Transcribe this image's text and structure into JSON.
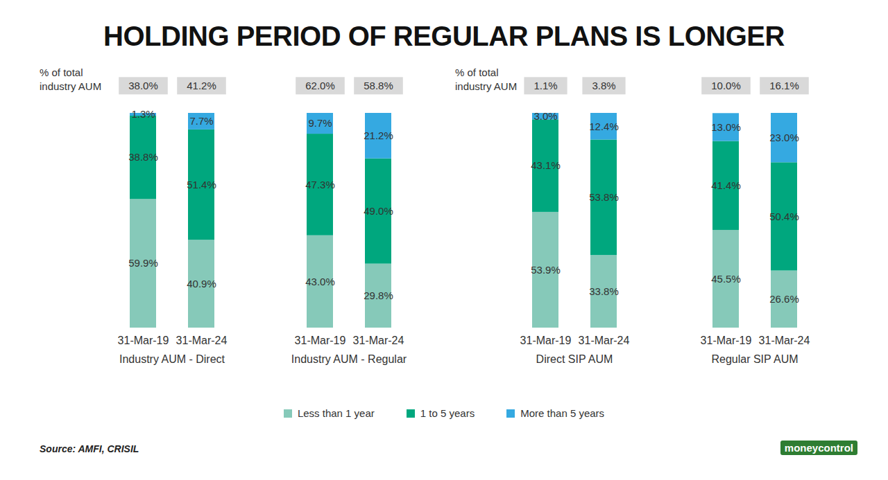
{
  "title": "HOLDING PERIOD OF REGULAR PLANS IS LONGER",
  "source": "Source: AMFI, CRISIL",
  "brand": "moneycontrol",
  "chart_data": [
    {
      "type": "bar",
      "stacked": true,
      "data_labels": true,
      "tick_labels": "x",
      "legend": "bottom",
      "ylim": [
        0,
        100
      ],
      "categories": [
        "31-Mar-19",
        "31-Mar-24",
        "31-Mar-19",
        "31-Mar-24"
      ],
      "category_groups": [
        "Industry AUM - Direct",
        "Industry AUM - Direct",
        "Industry AUM - Regular",
        "Industry AUM - Regular"
      ],
      "totals_label": "% of total industry AUM",
      "totals": [
        38.0,
        41.2,
        62.0,
        58.8
      ],
      "total_labels": [
        "38.0%",
        "41.2%",
        "62.0%",
        "58.8%"
      ],
      "series": [
        {
          "name": "Less than 1 year",
          "color": "#86c9b9",
          "values": [
            59.9,
            40.9,
            43.0,
            29.8
          ],
          "value_labels": [
            "59.9%",
            "40.9%",
            "43.0%",
            "29.8%"
          ]
        },
        {
          "name": "1 to 5 years",
          "color": "#00a77e",
          "values": [
            38.8,
            51.4,
            47.3,
            49.0
          ],
          "value_labels": [
            "38.8%",
            "51.4%",
            "47.3%",
            "49.0%"
          ]
        },
        {
          "name": "More than 5 years",
          "color": "#35a9e1",
          "values": [
            1.3,
            7.7,
            9.7,
            21.2
          ],
          "value_labels": [
            "1.3%",
            "7.7%",
            "9.7%",
            "21.2%"
          ]
        }
      ]
    },
    {
      "type": "bar",
      "stacked": true,
      "data_labels": true,
      "tick_labels": "x",
      "legend": "bottom",
      "ylim": [
        0,
        100
      ],
      "categories": [
        "31-Mar-19",
        "31-Mar-24",
        "31-Mar-19",
        "31-Mar-24"
      ],
      "category_groups": [
        "Direct SIP AUM",
        "Direct SIP AUM",
        "Regular SIP AUM",
        "Regular SIP AUM"
      ],
      "totals_label": "% of total industry AUM",
      "totals": [
        1.1,
        3.8,
        10.0,
        16.1
      ],
      "total_labels": [
        "1.1%",
        "3.8%",
        "10.0%",
        "16.1%"
      ],
      "series": [
        {
          "name": "Less than 1 year",
          "color": "#86c9b9",
          "values": [
            53.9,
            33.8,
            45.5,
            26.6
          ],
          "value_labels": [
            "53.9%",
            "33.8%",
            "45.5%",
            "26.6%"
          ]
        },
        {
          "name": "1 to 5 years",
          "color": "#00a77e",
          "values": [
            43.1,
            53.8,
            41.4,
            50.4
          ],
          "value_labels": [
            "43.1%",
            "53.8%",
            "41.4%",
            "50.4%"
          ]
        },
        {
          "name": "More than 5 years",
          "color": "#35a9e1",
          "values": [
            3.0,
            12.4,
            13.0,
            23.0
          ],
          "value_labels": [
            "3.0%",
            "12.4%",
            "13.0%",
            "23.0%"
          ]
        }
      ]
    }
  ]
}
